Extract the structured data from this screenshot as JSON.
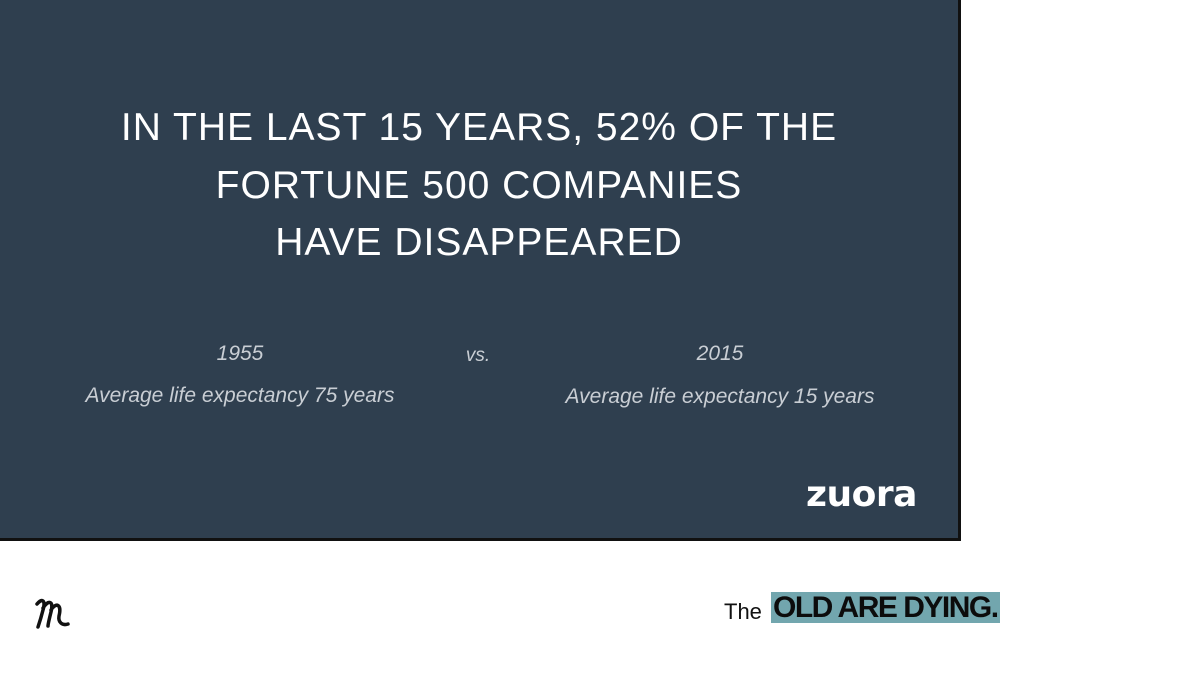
{
  "slide": {
    "headline": [
      "IN THE LAST 15 YEARS, 52% OF THE",
      "FORTUNE 500 COMPANIES",
      "HAVE DISAPPEARED"
    ],
    "left": {
      "year": "1955",
      "caption": "Average life expectancy 75 years"
    },
    "separator": "vs.",
    "right": {
      "year": "2015",
      "caption": "Average life expectancy 15 years"
    },
    "logo": "zuora"
  },
  "footer": {
    "prefix": "The",
    "highlight": "OLD ARE DYING."
  }
}
